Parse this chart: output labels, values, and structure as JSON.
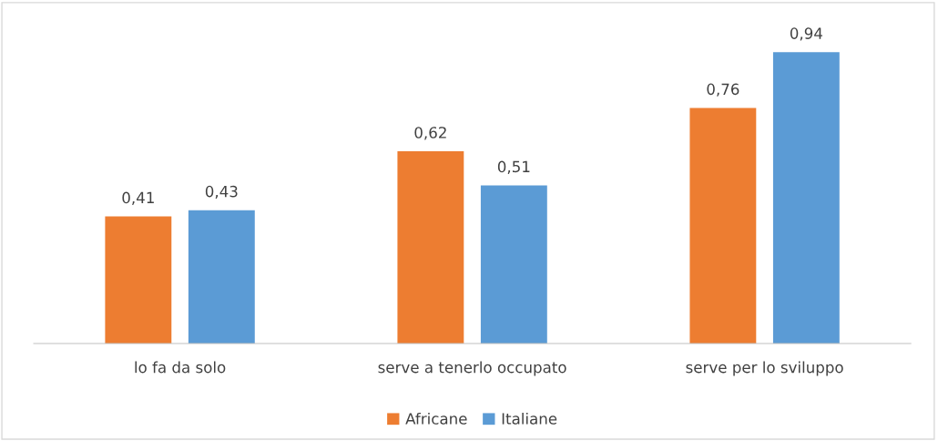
{
  "chart_data": {
    "type": "bar",
    "categories": [
      "lo fa da solo",
      "serve a tenerlo occupato",
      "serve per lo sviluppo"
    ],
    "series": [
      {
        "name": "Africane",
        "color": "#ed7d31",
        "values": [
          0.41,
          0.62,
          0.76
        ],
        "value_labels": [
          "0,41",
          "0,62",
          "0,76"
        ]
      },
      {
        "name": "Italiane",
        "color": "#5b9bd5",
        "values": [
          0.43,
          0.51,
          0.94
        ],
        "value_labels": [
          "0,43",
          "0,51",
          "0,94"
        ]
      }
    ],
    "legend": "bottom"
  }
}
